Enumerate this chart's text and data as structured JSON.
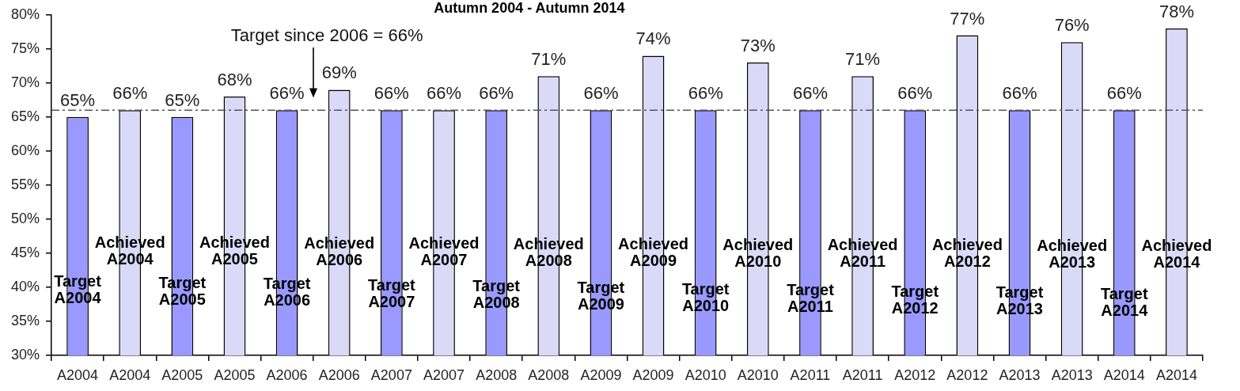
{
  "chart_data": {
    "type": "bar",
    "title": "Autumn 2004 - Autumn 2014",
    "categories": [
      "A2004",
      "A2004",
      "A2005",
      "A2005",
      "A2006",
      "A2006",
      "A2007",
      "A2007",
      "A2008",
      "A2008",
      "A2009",
      "A2009",
      "A2010",
      "A2010",
      "A2011",
      "A2011",
      "A2012",
      "A2012",
      "A2013",
      "A2013",
      "A2014",
      "A2014"
    ],
    "values": [
      65,
      66,
      65,
      68,
      66,
      69,
      66,
      66,
      66,
      71,
      66,
      74,
      66,
      73,
      66,
      71,
      66,
      77,
      66,
      76,
      66,
      78
    ],
    "colors": [
      "#9999ff",
      "#dadaf8",
      "#9999ff",
      "#dadaf8",
      "#9999ff",
      "#dadaf8",
      "#9999ff",
      "#dadaf8",
      "#9999ff",
      "#dadaf8",
      "#9999ff",
      "#dadaf8",
      "#9999ff",
      "#dadaf8",
      "#9999ff",
      "#dadaf8",
      "#9999ff",
      "#dadaf8",
      "#9999ff",
      "#dadaf8",
      "#9999ff",
      "#dadaf8"
    ],
    "value_labels": [
      "65%",
      "66%",
      "65%",
      "68%",
      "66%",
      "69%",
      "66%",
      "66%",
      "66%",
      "71%",
      "66%",
      "74%",
      "66%",
      "73%",
      "66%",
      "71%",
      "66%",
      "77%",
      "66%",
      "76%",
      "66%",
      "78%"
    ],
    "ylim": [
      30,
      80
    ],
    "yticks": [
      {
        "value": 30,
        "label": "30%"
      },
      {
        "value": 35,
        "label": "35%"
      },
      {
        "value": 40,
        "label": "40%"
      },
      {
        "value": 45,
        "label": "45%"
      },
      {
        "value": 50,
        "label": "50%"
      },
      {
        "value": 55,
        "label": "55%"
      },
      {
        "value": 60,
        "label": "60%"
      },
      {
        "value": 65,
        "label": "65%"
      },
      {
        "value": 70,
        "label": "70%"
      },
      {
        "value": 75,
        "label": "75%"
      },
      {
        "value": 80,
        "label": "80%"
      }
    ],
    "ref_lines": [
      {
        "axis": "y",
        "value": 66,
        "color": "#555555",
        "line_style": "dashed"
      }
    ],
    "annotations": [
      "Target A2004",
      "Achieved A2004",
      "Target A2005",
      "Achieved A2005",
      "Target A2006",
      "Achieved A2006",
      "Target A2007",
      "Achieved A2007",
      "Target A2008",
      "Achieved A2008",
      "Target A2009",
      "Achieved A2009",
      "Target A2010",
      "Achieved A2010",
      "Target A2011",
      "Achieved A2011",
      "Target A2012",
      "Achieved A2012",
      "Target A2013",
      "Achieved A2013",
      "Target A2014",
      "Achieved A2014",
      "Target since 2006 = 66%"
    ]
  }
}
